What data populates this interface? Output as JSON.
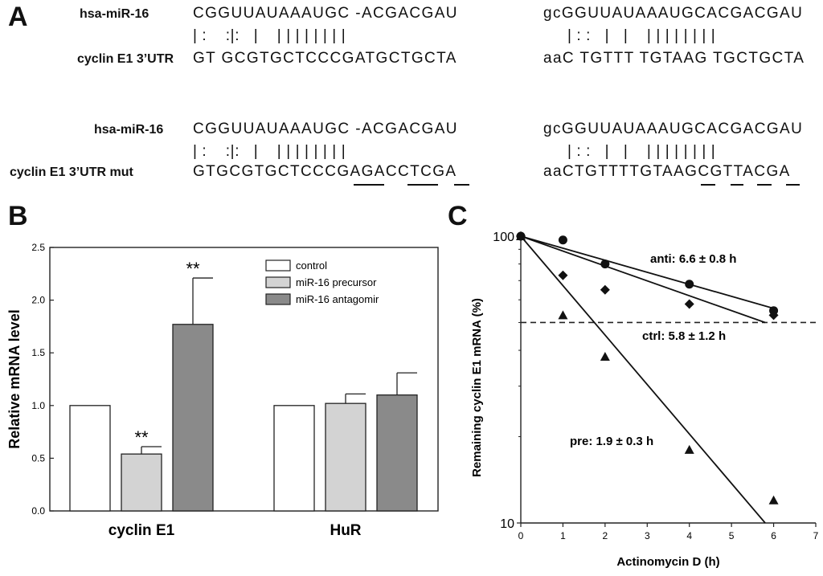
{
  "panels": {
    "a": {
      "letter": "A",
      "blocks": [
        {
          "mirna_label": "hsa-miR-16",
          "target_label": "cyclin E1 3’UTR",
          "left_mirna": "CGGUUAUAAAUGC -ACGACGAU",
          "left_bonds": "| :    :|:   |    | | | | | | | |",
          "left_target": "GT GCGTGCTCCCGATGCTGCTA",
          "right_mirna": "gcGGUUAUAAAUGCACGACGAU",
          "right_bonds": "| : :   |   |    | | | | | | | |",
          "right_target": "aaC TGTTT TGTAAG TGCTGCTA"
        },
        {
          "mirna_label": "hsa-miR-16",
          "target_label": "cyclin E1 3’UTR mut",
          "left_mirna": "CGGUUAUAAAUGC -ACGACGAU",
          "left_bonds": "| :    :|:   |    | | | | | | | |",
          "left_target": "GTGCGTGCTCCCGAGACCTCGA",
          "right_mirna": "gcGGUUAUAAAUGCACGACGAU",
          "right_bonds": "| : :   |   |    | | | | | | | |",
          "right_target": "aaCTGTTTTGTAAGCGTTACGA"
        }
      ]
    },
    "b": {
      "letter": "B"
    },
    "c": {
      "letter": "C"
    }
  },
  "chart_data": [
    {
      "type": "bar",
      "panel": "B",
      "categories": [
        "cyclin E1",
        "HuR"
      ],
      "series": [
        {
          "name": "control",
          "values": [
            1.0,
            1.0
          ],
          "errors": [
            0,
            0
          ],
          "color": "#ffffff"
        },
        {
          "name": "miR-16 precursor",
          "values": [
            0.54,
            1.02
          ],
          "errors": [
            0.07,
            0.09
          ],
          "color": "#d3d3d3"
        },
        {
          "name": "miR-16 antagomir",
          "values": [
            1.77,
            1.1
          ],
          "errors": [
            0.44,
            0.21
          ],
          "color": "#8a8a8a"
        }
      ],
      "significance": [
        {
          "category": 0,
          "series": 1,
          "label": "**"
        },
        {
          "category": 0,
          "series": 2,
          "label": "**"
        }
      ],
      "ylabel": "Relative mRNA level",
      "ylim": [
        0.0,
        2.5
      ],
      "yticks": [
        "0.0",
        "0.5",
        "1.0",
        "1.5",
        "2.0",
        "2.5"
      ],
      "legend_position": "top-right"
    },
    {
      "type": "scatter",
      "panel": "C",
      "xlabel": "Actinomycin D (h)",
      "ylabel": "Remaining cyclin E1 mRNA (%)",
      "xlim": [
        0,
        7
      ],
      "ylim": [
        10,
        100
      ],
      "yscale": "log",
      "xticks": [
        "0",
        "1",
        "2",
        "3",
        "4",
        "5",
        "6",
        "7"
      ],
      "yticks": [
        "10",
        "100"
      ],
      "reference_line": {
        "y": 50,
        "style": "dashed"
      },
      "series": [
        {
          "name": "anti",
          "marker": "circle",
          "x": [
            0,
            1,
            2,
            4,
            6
          ],
          "y": [
            100,
            97,
            80,
            68,
            55
          ],
          "fit": {
            "x": [
              0,
              6
            ],
            "y": [
              100,
              56
            ]
          },
          "annotation": "anti: 6.6 ± 0.8 h"
        },
        {
          "name": "ctrl",
          "marker": "diamond",
          "x": [
            0,
            1,
            2,
            4,
            6
          ],
          "y": [
            100,
            73,
            65,
            58,
            53
          ],
          "fit": {
            "x": [
              0,
              5.8
            ],
            "y": [
              100,
              50
            ]
          },
          "annotation": "ctrl: 5.8 ± 1.2 h"
        },
        {
          "name": "pre",
          "marker": "triangle",
          "x": [
            0,
            1,
            2,
            4,
            6
          ],
          "y": [
            100,
            53,
            38,
            18,
            12
          ],
          "fit": {
            "x": [
              0,
              5.8
            ],
            "y": [
              100,
              10
            ]
          },
          "annotation": "pre: 1.9 ± 0.3 h"
        }
      ]
    }
  ]
}
